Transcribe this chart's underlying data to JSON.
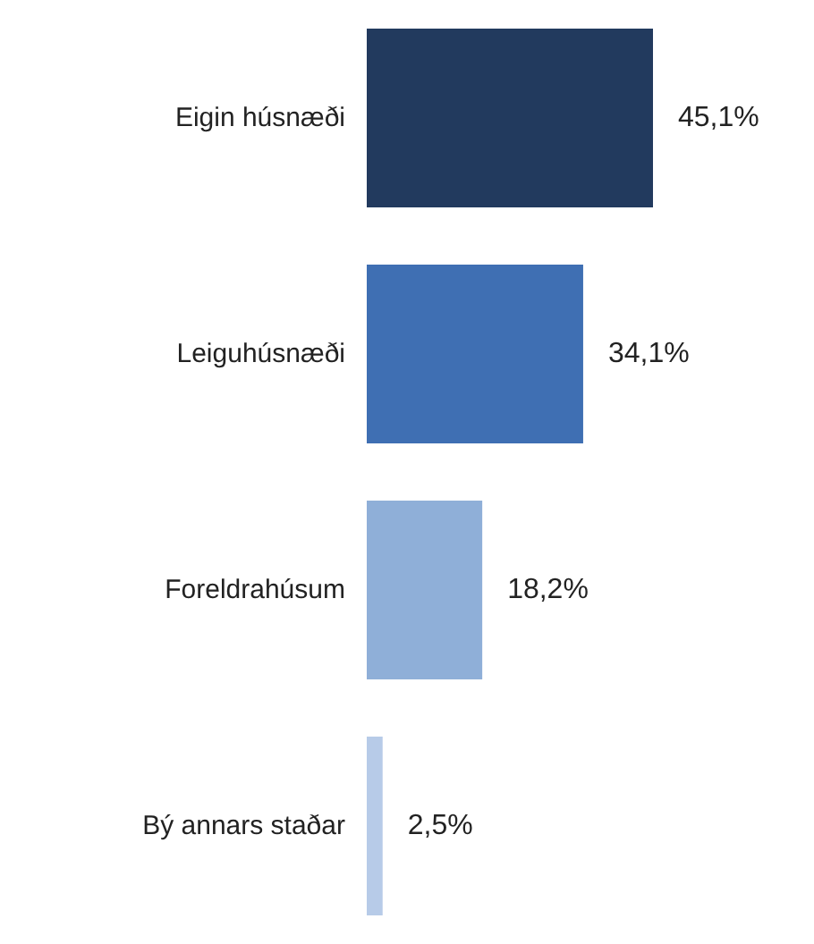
{
  "chart_data": {
    "type": "bar",
    "orientation": "horizontal",
    "categories": [
      "Eigin húsnæði",
      "Leiguhúsnæði",
      "Foreldrahúsum",
      "Bý annars staðar"
    ],
    "values": [
      45.1,
      34.1,
      18.2,
      2.5
    ],
    "value_labels": [
      "45,1%",
      "34,1%",
      "18,2%",
      "2,5%"
    ],
    "colors": [
      "#223a5e",
      "#3f6fb3",
      "#8fafd8",
      "#b7cbe8"
    ]
  }
}
